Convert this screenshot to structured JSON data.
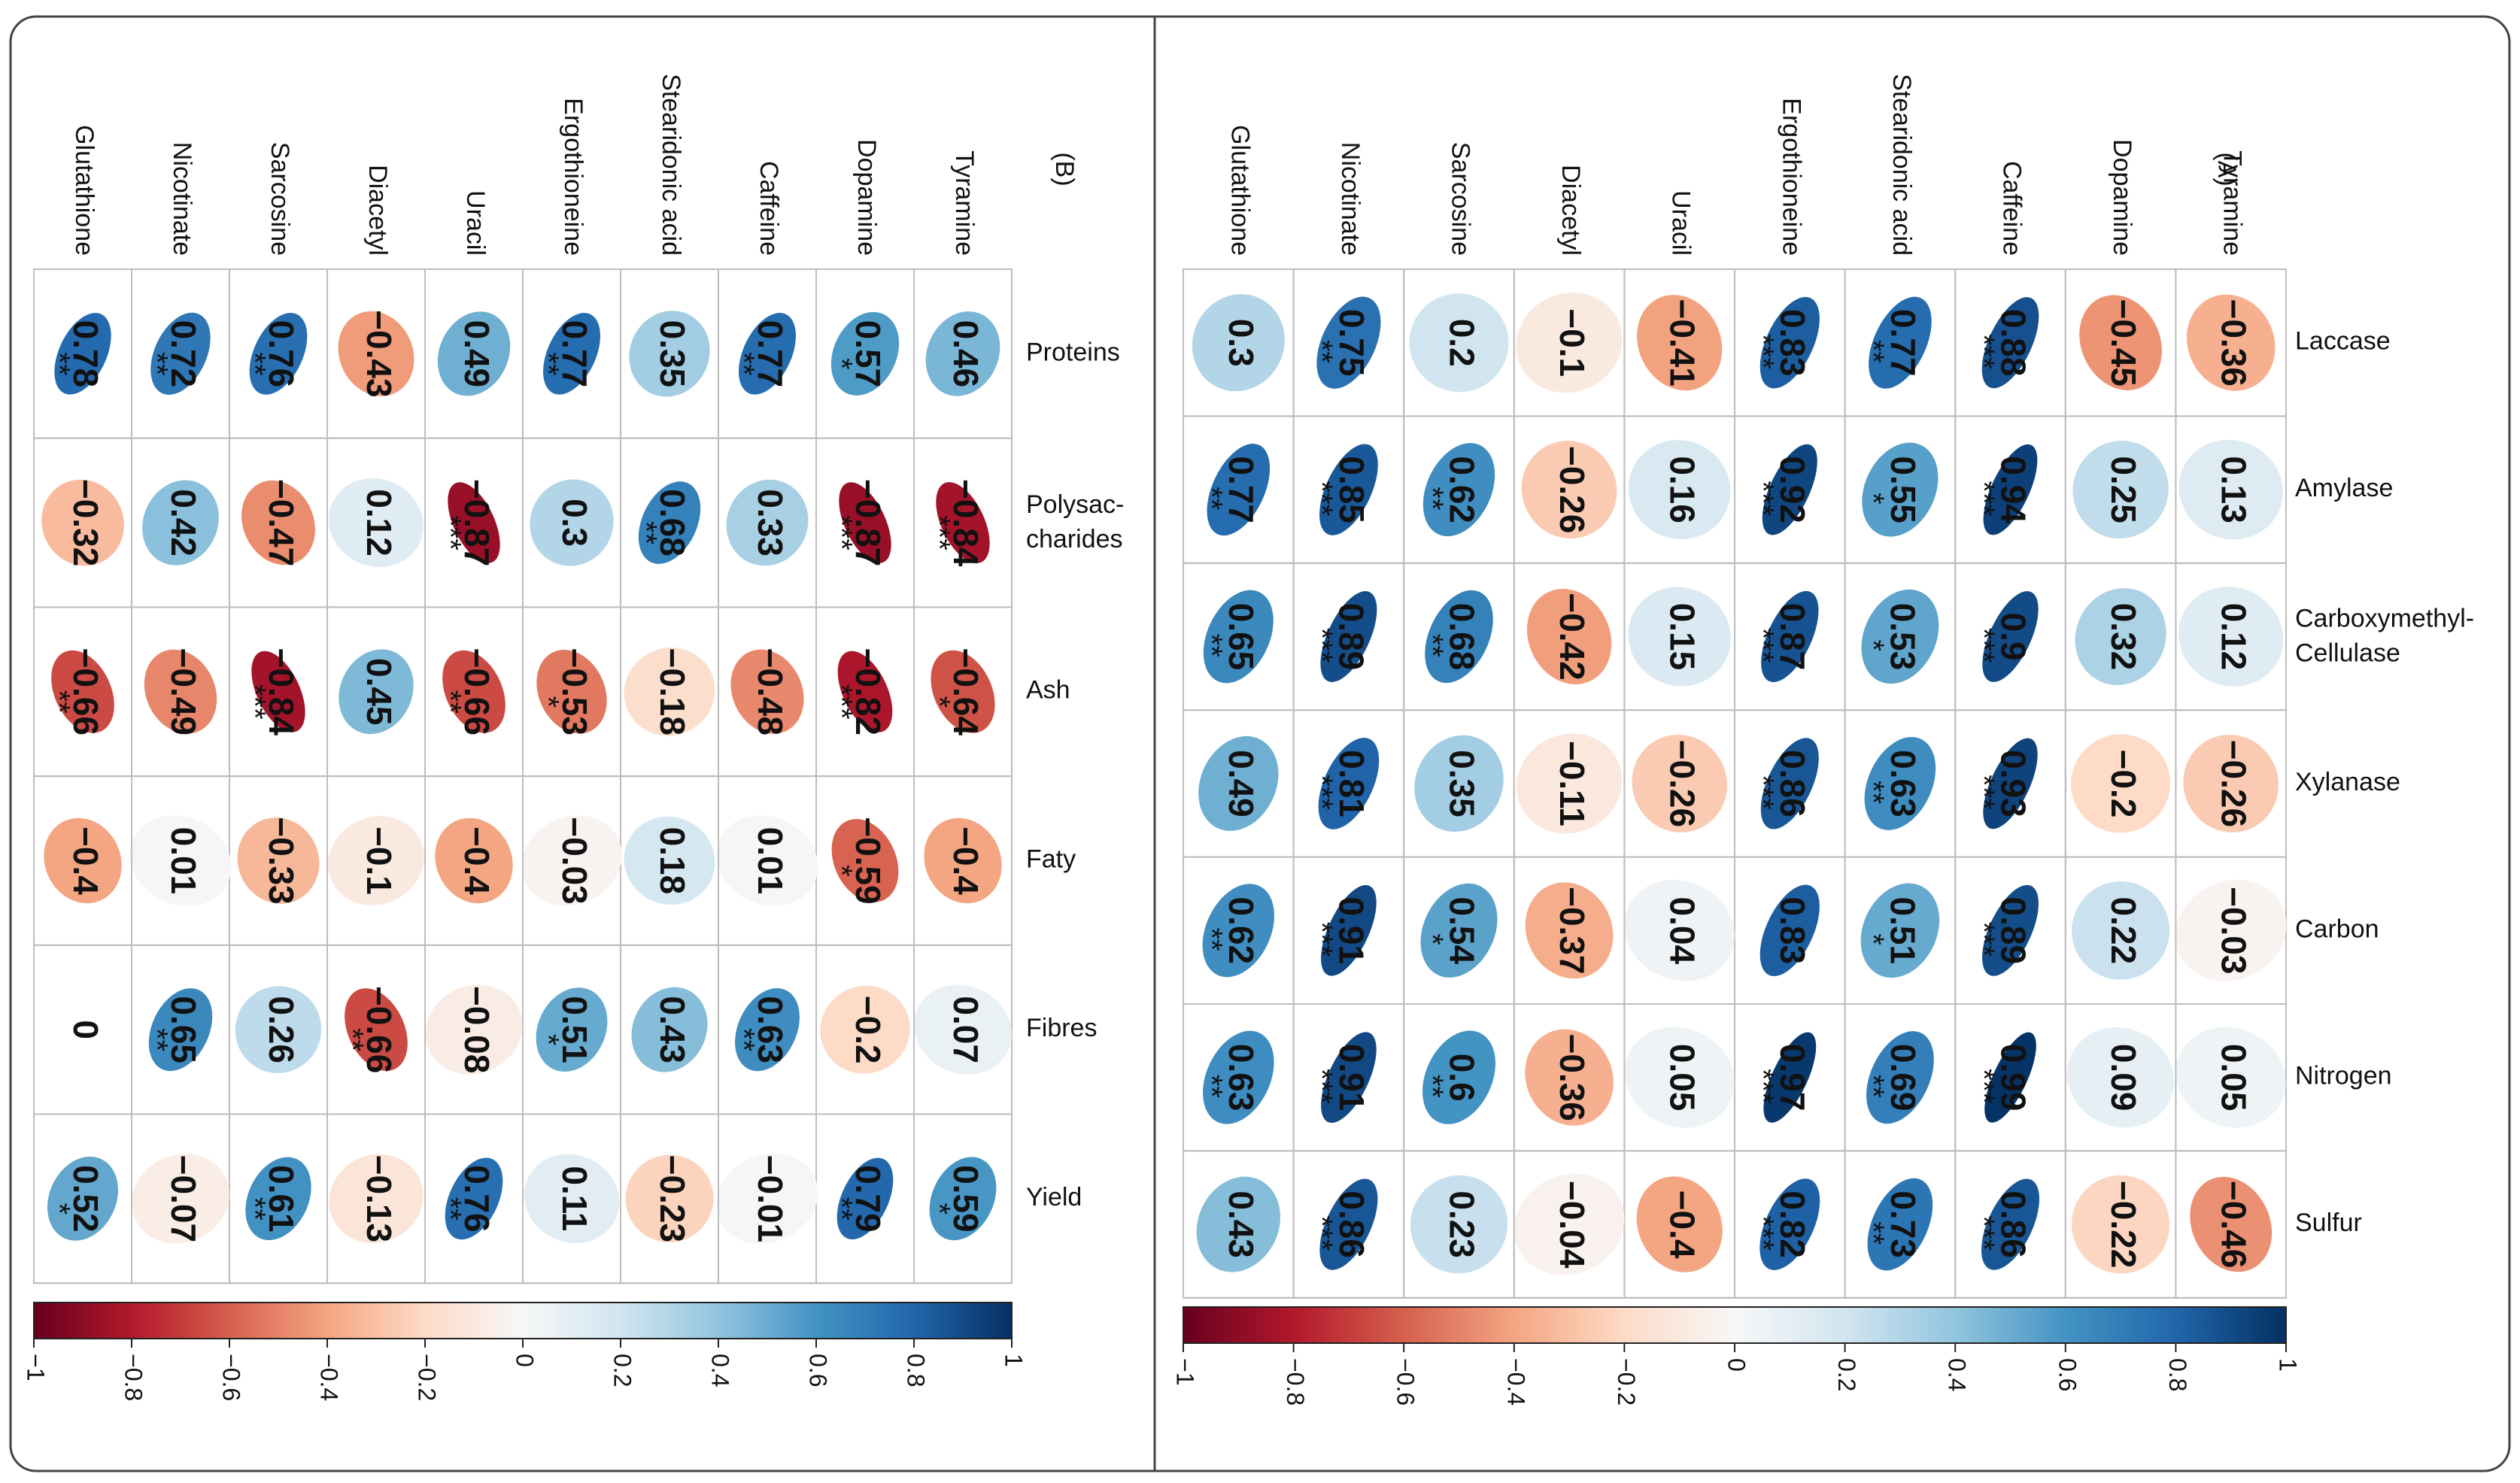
{
  "colorbar": {
    "ticks": [
      "−1",
      "−0.8",
      "−0.6",
      "−0.4",
      "−0.2",
      "0",
      "0.2",
      "0.4",
      "0.6",
      "0.8",
      "1"
    ],
    "range": [
      -1,
      1
    ],
    "colors": [
      "#67001f",
      "#b2182b",
      "#d6604d",
      "#f4a582",
      "#fddbc7",
      "#f7f7f7",
      "#d1e5f0",
      "#92c5de",
      "#4393c3",
      "#2166ac",
      "#053061"
    ]
  },
  "chart_data": [
    {
      "type": "heatmap",
      "title": "(B)",
      "variables": [
        "Tyramine",
        "Dopamine",
        "Caffeine",
        "Stearidonic acid",
        "Ergothioneine",
        "Uracil",
        "Diacetyl",
        "Sarcosine",
        "Nicotinate",
        "Glutathione"
      ],
      "properties": [
        {
          "label": "Proteins",
          "label_line2": ""
        },
        {
          "label": "Polysac-",
          "label_line2": "charides"
        },
        {
          "label": "Ash",
          "label_line2": ""
        },
        {
          "label": "Faty",
          "label_line2": ""
        },
        {
          "label": "Fibres",
          "label_line2": ""
        },
        {
          "label": "Yield",
          "label_line2": ""
        }
      ],
      "values": [
        [
          "0.46",
          "0.57",
          "0.77",
          "0.35",
          "0.77",
          "0.49",
          "−0.43",
          "0.76",
          "0.72",
          "0.78"
        ],
        [
          "−0.84",
          "−0.87",
          "0.33",
          "0.68",
          "0.3",
          "−0.87",
          "0.12",
          "−0.47",
          "0.42",
          "−0.32"
        ],
        [
          "−0.64",
          "−0.82",
          "−0.48",
          "−0.18",
          "−0.53",
          "−0.66",
          "0.45",
          "−0.84",
          "−0.49",
          "−0.66"
        ],
        [
          "−0.4",
          "−0.59",
          "0.01",
          "0.18",
          "−0.03",
          "−0.4",
          "−0.1",
          "−0.33",
          "0.01",
          "−0.4"
        ],
        [
          "0.07",
          "−0.2",
          "0.63",
          "0.43",
          "0.51",
          "−0.08",
          "−0.66",
          "0.26",
          "0.65",
          "0"
        ],
        [
          "0.59",
          "0.79",
          "−0.01",
          "−0.23",
          "0.11",
          "0.76",
          "−0.13",
          "0.61",
          "−0.07",
          "0.52"
        ]
      ],
      "stars": [
        [
          "",
          "*",
          "**",
          "",
          "**",
          "",
          "",
          "**",
          "**",
          "**"
        ],
        [
          "***",
          "***",
          "",
          "**",
          "",
          "***",
          "",
          "",
          "",
          ""
        ],
        [
          "*",
          "***",
          "",
          "",
          "*",
          "**",
          "",
          "***",
          "",
          "**"
        ],
        [
          "",
          "*",
          "",
          "",
          "",
          "",
          "",
          "",
          "",
          ""
        ],
        [
          "",
          "",
          "**",
          "",
          "*",
          "",
          "**",
          "",
          "**",
          ""
        ],
        [
          "*",
          "**",
          "",
          "",
          "",
          "**",
          "",
          "**",
          "",
          "*"
        ]
      ]
    },
    {
      "type": "heatmap",
      "title": "(A)",
      "variables": [
        "Tyramine",
        "Dopamine",
        "Caffeine",
        "Stearidonic acid",
        "Ergothioneine",
        "Uracil",
        "Diacetyl",
        "Sarcosine",
        "Nicotinate",
        "Glutathione"
      ],
      "properties": [
        {
          "label": "Laccase",
          "label_line2": ""
        },
        {
          "label": "Amylase",
          "label_line2": ""
        },
        {
          "label": "Carboxymethyl-",
          "label_line2": "Cellulase"
        },
        {
          "label": "Xylanase",
          "label_line2": ""
        },
        {
          "label": "Carbon",
          "label_line2": ""
        },
        {
          "label": "Nitrogen",
          "label_line2": ""
        },
        {
          "label": "Sulfur",
          "label_line2": ""
        }
      ],
      "values": [
        [
          "−0.36",
          "−0.45",
          "0.88",
          "0.77",
          "0.83",
          "−0.41",
          "−0.1",
          "0.2",
          "0.75",
          "0.3"
        ],
        [
          "0.13",
          "0.25",
          "0.94",
          "0.55",
          "0.92",
          "0.16",
          "−0.26",
          "0.62",
          "0.85",
          "0.77"
        ],
        [
          "0.12",
          "0.32",
          "0.9",
          "0.53",
          "0.87",
          "0.15",
          "−0.42",
          "0.68",
          "0.89",
          "0.65"
        ],
        [
          "−0.26",
          "−0.2",
          "0.93",
          "0.63",
          "0.86",
          "−0.26",
          "−0.11",
          "0.35",
          "0.81",
          "0.49"
        ],
        [
          "−0.03",
          "0.22",
          "0.89",
          "0.51",
          "0.83",
          "0.04",
          "−0.37",
          "0.54",
          "0.91",
          "0.62"
        ],
        [
          "0.05",
          "0.09",
          "0.99",
          "0.69",
          "0.97",
          "0.05",
          "−0.36",
          "0.6",
          "0.91",
          "0.63"
        ],
        [
          "−0.46",
          "−0.22",
          "0.86",
          "0.73",
          "0.82",
          "−0.4",
          "−0.04",
          "0.23",
          "0.86",
          "0.43"
        ]
      ],
      "stars": [
        [
          "",
          "",
          "***",
          "**",
          "***",
          "",
          "",
          "",
          "**",
          ""
        ],
        [
          "",
          "",
          "***",
          "*",
          "***",
          "",
          "",
          "**",
          "***",
          "**"
        ],
        [
          "",
          "",
          "***",
          "*",
          "***",
          "",
          "",
          "**",
          "***",
          "**"
        ],
        [
          "",
          "",
          "***",
          "**",
          "***",
          "",
          "",
          "",
          "***",
          ""
        ],
        [
          "",
          "",
          "***",
          "*",
          "",
          "",
          "",
          "*",
          "***",
          "**"
        ],
        [
          "",
          "",
          "***",
          "**",
          "***",
          "",
          "",
          "**",
          "***",
          "**"
        ],
        [
          "",
          "",
          "***",
          "**",
          "***",
          "",
          "",
          "",
          "***",
          ""
        ]
      ]
    }
  ]
}
